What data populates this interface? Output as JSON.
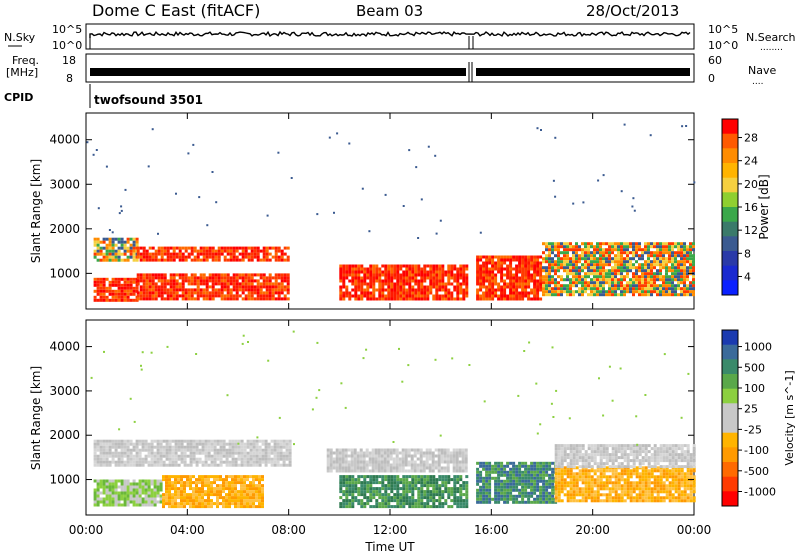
{
  "header": {
    "title": "Dome C East (fitACF)",
    "beam": "Beam 03",
    "date": "28/Oct/2013"
  },
  "side_labels": {
    "nsky": "N.Sky",
    "freq_line1": "Freq.",
    "freq_line2": "[MHz]",
    "cpid": "CPID",
    "nsearch": "N.Search",
    "nave": "Nave",
    "dots": "........",
    "dots_short": "...."
  },
  "top_panels": {
    "nsky_ticks": [
      "10^5",
      "10^0"
    ],
    "nsearch_ticks": [
      "10^5",
      "10^0"
    ],
    "freq_ticks": [
      "18",
      "8"
    ],
    "nave_ticks": [
      "60",
      "0"
    ],
    "cpid_text": "twofsound 3501"
  },
  "colorbars": {
    "power": {
      "label": "Power [dB]",
      "ticks": [
        "28",
        "24",
        "20",
        "16",
        "12",
        "8",
        "4"
      ],
      "colors": [
        "#ff0000",
        "#ff5a00",
        "#ff8c00",
        "#ffb400",
        "#f5d040",
        "#8fd030",
        "#3aa84a",
        "#3a7a6a",
        "#3a5a90",
        "#2a3aa8",
        "#1a2ad0",
        "#0a20ff"
      ]
    },
    "velocity": {
      "label": "Velocity [m s^-1]",
      "ticks": [
        "1000",
        "500",
        "100",
        "25",
        "-25",
        "-100",
        "-500",
        "-1000"
      ],
      "colors": [
        "#1a3ab0",
        "#3a6a9a",
        "#3a8a6a",
        "#5aa84a",
        "#8cd040",
        "#c8c8c8",
        "#c8c8c8",
        "#ffb400",
        "#ff9a00",
        "#ff6a00",
        "#ff3a00",
        "#ff0000"
      ]
    }
  },
  "x_axis": {
    "label": "Time UT",
    "ticks": [
      "00:00",
      "04:00",
      "08:00",
      "12:00",
      "16:00",
      "20:00",
      "00:00"
    ]
  },
  "chart_data": [
    {
      "type": "heatmap",
      "name": "power",
      "ylabel": "Slant Range [km]",
      "yticks": [
        1000,
        2000,
        3000,
        4000
      ],
      "ylim": [
        200,
        4600
      ],
      "xlim_hours": [
        0,
        24
      ],
      "note_gap_hours": [
        15.1,
        15.4
      ],
      "bands": [
        {
          "t0": 0.3,
          "t1": 2.0,
          "r0": 1300,
          "r1": 1800,
          "level": "mid"
        },
        {
          "t0": 0.3,
          "t1": 2.0,
          "r0": 400,
          "r1": 900,
          "level": "high"
        },
        {
          "t0": 2.0,
          "t1": 8.0,
          "r0": 1300,
          "r1": 1600,
          "level": "high"
        },
        {
          "t0": 2.0,
          "t1": 8.0,
          "r0": 400,
          "r1": 1000,
          "level": "high"
        },
        {
          "t0": 10.0,
          "t1": 15.0,
          "r0": 400,
          "r1": 1200,
          "level": "high"
        },
        {
          "t0": 15.4,
          "t1": 18.0,
          "r0": 400,
          "r1": 1400,
          "level": "high"
        },
        {
          "t0": 18.0,
          "t1": 24.0,
          "r0": 500,
          "r1": 1700,
          "level": "mid"
        }
      ]
    },
    {
      "type": "heatmap",
      "name": "velocity",
      "ylabel": "Slant Range [km]",
      "yticks": [
        1000,
        2000,
        3000,
        4000
      ],
      "ylim": [
        200,
        4600
      ],
      "xlim_hours": [
        0,
        24
      ],
      "bands": [
        {
          "t0": 0.3,
          "t1": 8.0,
          "r0": 1300,
          "r1": 1900,
          "level": "grey"
        },
        {
          "t0": 0.3,
          "t1": 3.0,
          "r0": 400,
          "r1": 1000,
          "level": "lightgreen"
        },
        {
          "t0": 3.0,
          "t1": 7.0,
          "r0": 400,
          "r1": 1100,
          "level": "orange"
        },
        {
          "t0": 9.5,
          "t1": 15.0,
          "r0": 1200,
          "r1": 1700,
          "level": "grey"
        },
        {
          "t0": 10.0,
          "t1": 15.0,
          "r0": 400,
          "r1": 1100,
          "level": "green"
        },
        {
          "t0": 15.4,
          "t1": 18.5,
          "r0": 500,
          "r1": 1400,
          "level": "teal"
        },
        {
          "t0": 18.5,
          "t1": 24.0,
          "r0": 500,
          "r1": 1300,
          "level": "orange"
        },
        {
          "t0": 18.5,
          "t1": 24.0,
          "r0": 1300,
          "r1": 1800,
          "level": "grey"
        }
      ]
    }
  ]
}
